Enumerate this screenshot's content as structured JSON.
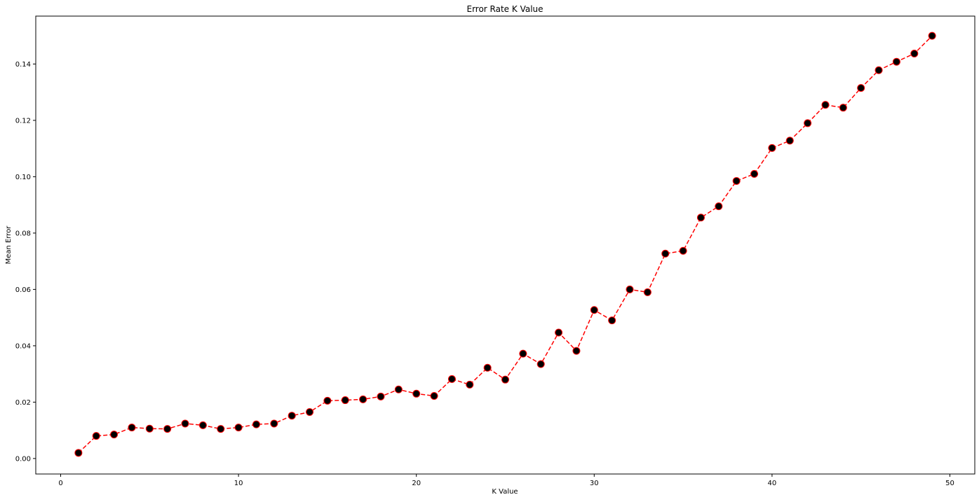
{
  "chart_data": {
    "type": "line",
    "title": "Error Rate K Value",
    "xlabel": "K Value",
    "ylabel": "Mean Error",
    "xlim": [
      -1.4,
      51.4
    ],
    "ylim": [
      -0.0055,
      0.157
    ],
    "x_ticks": [
      0,
      10,
      20,
      30,
      40,
      50
    ],
    "x_tick_labels": [
      "0",
      "10",
      "20",
      "30",
      "40",
      "50"
    ],
    "y_ticks": [
      0.0,
      0.02,
      0.04,
      0.06,
      0.08,
      0.1,
      0.12,
      0.14
    ],
    "y_tick_labels": [
      "0.00",
      "0.02",
      "0.04",
      "0.06",
      "0.08",
      "0.10",
      "0.12",
      "0.14"
    ],
    "grid": false,
    "line_color": "#ff0000",
    "line_style": "dashed",
    "marker": "circle",
    "marker_face_color": "#000000",
    "marker_edge_color": "#ff0000",
    "x": [
      1,
      2,
      3,
      4,
      5,
      6,
      7,
      8,
      9,
      10,
      11,
      12,
      13,
      14,
      15,
      16,
      17,
      18,
      19,
      20,
      21,
      22,
      23,
      24,
      25,
      26,
      27,
      28,
      29,
      30,
      31,
      32,
      33,
      34,
      35,
      36,
      37,
      38,
      39,
      40,
      41,
      42,
      43,
      44,
      45,
      46,
      47,
      48,
      49
    ],
    "series": [
      {
        "values": [
          0.002,
          0.008,
          0.0085,
          0.011,
          0.0106,
          0.0105,
          0.0124,
          0.0118,
          0.0105,
          0.011,
          0.0121,
          0.0124,
          0.0152,
          0.0165,
          0.0205,
          0.0207,
          0.021,
          0.022,
          0.0245,
          0.023,
          0.0222,
          0.0282,
          0.0262,
          0.0322,
          0.028,
          0.0372,
          0.0335,
          0.0447,
          0.0382,
          0.0527,
          0.049,
          0.06,
          0.059,
          0.0727,
          0.0737,
          0.0855,
          0.0895,
          0.0985,
          0.101,
          0.1102,
          0.1128,
          0.119,
          0.1255,
          0.1245,
          0.1315,
          0.1378,
          0.1408,
          0.1437,
          0.15
        ]
      }
    ]
  }
}
